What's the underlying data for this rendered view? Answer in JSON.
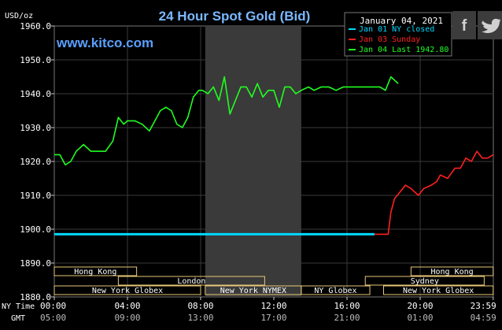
{
  "chart_data": {
    "type": "line",
    "title": "24 Hour Spot Gold (Bid)",
    "ylabel": "USD/oz",
    "ylim": [
      1880,
      1960
    ],
    "yticks": [
      "1960.0",
      "1950.0",
      "1940.0",
      "1930.0",
      "1920.0",
      "1910.0",
      "1900.0",
      "1890.0",
      "1880.0"
    ],
    "watermark": "www.kitco.com",
    "legend": {
      "date": "January 04, 2021",
      "placement": "top-right",
      "entries": [
        {
          "label": "Jan 01 NY closed",
          "color": "#00d8ff"
        },
        {
          "label": "Jan 03 Sunday",
          "color": "#ff2020"
        },
        {
          "label": "Jan 04 Last 1942.80",
          "color": "#20ff20"
        }
      ]
    },
    "x_axis": {
      "row1_label": "NY Time",
      "row2_label": "GMT",
      "ny_ticks": [
        "00:00",
        "04:00",
        "08:00",
        "12:00",
        "16:00",
        "20:00",
        "23:59"
      ],
      "gmt_ticks": [
        "05:00",
        "09:00",
        "13:00",
        "17:00",
        "21:00",
        "01:00",
        "04:59"
      ]
    },
    "sessions": [
      {
        "label": "Hong Kong",
        "start": 0,
        "end": 4.5,
        "row": 0
      },
      {
        "label": "Hong Kong",
        "start": 19.5,
        "end": 23.99,
        "row": 0
      },
      {
        "label": "London",
        "start": 3.5,
        "end": 11.5,
        "row": 1
      },
      {
        "label": "Sydney",
        "start": 17,
        "end": 23.5,
        "row": 1
      },
      {
        "label": "New York Globex",
        "start": 0,
        "end": 8,
        "row": 2
      },
      {
        "label": "New York NYMEX",
        "start": 8.25,
        "end": 13.5,
        "row": 2
      },
      {
        "label": "NY Globex",
        "start": 13.5,
        "end": 17.25,
        "row": 2
      },
      {
        "label": "New York Globex",
        "start": 18,
        "end": 23.99,
        "row": 2
      }
    ],
    "shaded_range": [
      8.25,
      13.5
    ],
    "series": [
      {
        "name": "Jan 01 NY closed",
        "color": "#00d8ff",
        "x": [
          0,
          17.5
        ],
        "y": [
          1898.5,
          1898.5
        ]
      },
      {
        "name": "Jan 03 Sunday",
        "color": "#ff2020",
        "x": [
          17.5,
          18.25,
          18.4,
          18.6,
          18.9,
          19.2,
          19.5,
          19.9,
          20.2,
          20.6,
          20.9,
          21.1,
          21.5,
          21.9,
          22.2,
          22.5,
          22.8,
          23.1,
          23.4,
          23.7,
          23.99
        ],
        "y": [
          1898.5,
          1898.5,
          1905,
          1909,
          1911,
          1913,
          1912,
          1910,
          1912,
          1913,
          1914,
          1916,
          1915,
          1918,
          1918,
          1921,
          1920,
          1923,
          1921,
          1921,
          1922
        ]
      },
      {
        "name": "Jan 04 Last 1942.80",
        "color": "#20ff20",
        "x": [
          0,
          0.3,
          0.6,
          0.9,
          1.2,
          1.6,
          2.0,
          2.4,
          2.8,
          3.2,
          3.5,
          3.8,
          4.0,
          4.4,
          4.8,
          5.2,
          5.5,
          5.8,
          6.1,
          6.4,
          6.7,
          7.0,
          7.3,
          7.6,
          7.9,
          8.1,
          8.4,
          8.7,
          9.0,
          9.3,
          9.6,
          9.9,
          10.2,
          10.5,
          10.8,
          11.1,
          11.4,
          11.7,
          12.0,
          12.3,
          12.6,
          12.9,
          13.2,
          13.5,
          13.9,
          14.2,
          14.6,
          15.0,
          15.4,
          15.8,
          16.2,
          16.6,
          17.0,
          17.4,
          17.8,
          18.1,
          18.4,
          18.6,
          18.8
        ],
        "y": [
          1922,
          1922,
          1919,
          1920,
          1923,
          1925,
          1923,
          1923,
          1923,
          1926,
          1933,
          1931,
          1932,
          1932,
          1931,
          1929,
          1932,
          1935,
          1936,
          1935,
          1931,
          1930,
          1933,
          1939,
          1941,
          1941,
          1940,
          1942,
          1938,
          1945,
          1934,
          1938,
          1942,
          1942,
          1939,
          1943,
          1939,
          1941,
          1941,
          1936,
          1942,
          1942,
          1940,
          1941,
          1942,
          1941,
          1942,
          1942,
          1941,
          1942,
          1942,
          1942,
          1942,
          1942,
          1942,
          1941,
          1945,
          1944,
          1943
        ]
      }
    ]
  },
  "social": {
    "facebook": "f",
    "twitter": "twitter-bird-icon"
  }
}
